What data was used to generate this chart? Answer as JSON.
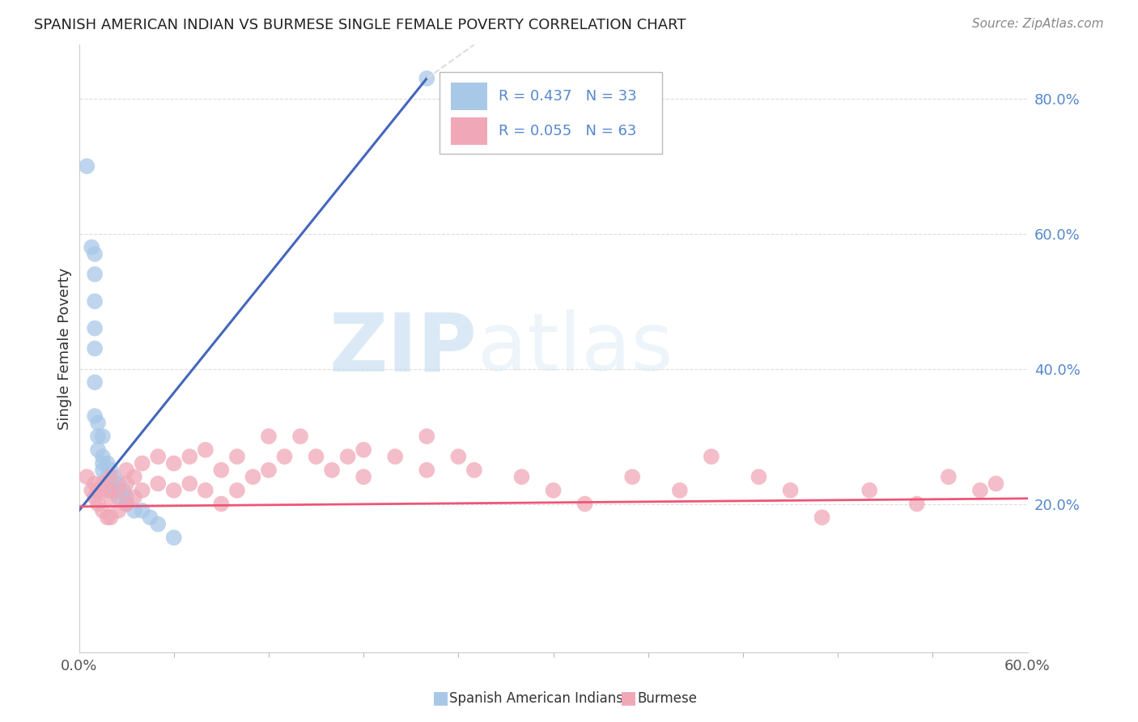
{
  "title": "SPANISH AMERICAN INDIAN VS BURMESE SINGLE FEMALE POVERTY CORRELATION CHART",
  "source": "Source: ZipAtlas.com",
  "ylabel": "Single Female Poverty",
  "x_min": 0.0,
  "x_max": 0.6,
  "y_min": -0.02,
  "y_max": 0.88,
  "color_blue": "#A8C8E8",
  "color_pink": "#F0A8B8",
  "line_blue": "#4466BB",
  "line_pink": "#EE5577",
  "watermark_zip": "ZIP",
  "watermark_atlas": "atlas",
  "grid_color": "#DDDDDD",
  "tick_color": "#5588CC",
  "blue_dots_x": [
    0.005,
    0.008,
    0.01,
    0.01,
    0.01,
    0.01,
    0.01,
    0.01,
    0.01,
    0.012,
    0.012,
    0.012,
    0.015,
    0.015,
    0.015,
    0.015,
    0.018,
    0.018,
    0.02,
    0.02,
    0.02,
    0.022,
    0.025,
    0.025,
    0.028,
    0.03,
    0.03,
    0.035,
    0.04,
    0.045,
    0.05,
    0.06,
    0.22
  ],
  "blue_dots_y": [
    0.7,
    0.58,
    0.57,
    0.54,
    0.5,
    0.46,
    0.43,
    0.38,
    0.33,
    0.32,
    0.3,
    0.28,
    0.3,
    0.27,
    0.26,
    0.25,
    0.26,
    0.24,
    0.25,
    0.23,
    0.22,
    0.24,
    0.23,
    0.21,
    0.22,
    0.21,
    0.2,
    0.19,
    0.19,
    0.18,
    0.17,
    0.15,
    0.83
  ],
  "pink_dots_x": [
    0.005,
    0.008,
    0.01,
    0.01,
    0.012,
    0.012,
    0.015,
    0.015,
    0.018,
    0.018,
    0.02,
    0.02,
    0.02,
    0.025,
    0.025,
    0.03,
    0.03,
    0.03,
    0.035,
    0.035,
    0.04,
    0.04,
    0.05,
    0.05,
    0.06,
    0.06,
    0.07,
    0.07,
    0.08,
    0.08,
    0.09,
    0.09,
    0.1,
    0.1,
    0.11,
    0.12,
    0.12,
    0.13,
    0.14,
    0.15,
    0.16,
    0.17,
    0.18,
    0.18,
    0.2,
    0.22,
    0.22,
    0.24,
    0.25,
    0.28,
    0.3,
    0.32,
    0.35,
    0.38,
    0.4,
    0.43,
    0.45,
    0.47,
    0.5,
    0.53,
    0.55,
    0.57,
    0.58
  ],
  "pink_dots_y": [
    0.24,
    0.22,
    0.23,
    0.21,
    0.22,
    0.2,
    0.23,
    0.19,
    0.22,
    0.18,
    0.24,
    0.21,
    0.18,
    0.22,
    0.19,
    0.25,
    0.23,
    0.2,
    0.24,
    0.21,
    0.26,
    0.22,
    0.27,
    0.23,
    0.26,
    0.22,
    0.27,
    0.23,
    0.28,
    0.22,
    0.25,
    0.2,
    0.27,
    0.22,
    0.24,
    0.3,
    0.25,
    0.27,
    0.3,
    0.27,
    0.25,
    0.27,
    0.28,
    0.24,
    0.27,
    0.3,
    0.25,
    0.27,
    0.25,
    0.24,
    0.22,
    0.2,
    0.24,
    0.22,
    0.27,
    0.24,
    0.22,
    0.18,
    0.22,
    0.2,
    0.24,
    0.22,
    0.23
  ],
  "blue_line_x0": 0.0,
  "blue_line_y0": 0.19,
  "blue_line_x1": 0.22,
  "blue_line_y1": 0.83,
  "blue_line_dashed_x1": 0.25,
  "blue_line_dashed_y1": 0.88,
  "pink_line_x0": 0.0,
  "pink_line_y0": 0.196,
  "pink_line_x1": 0.6,
  "pink_line_y1": 0.208
}
